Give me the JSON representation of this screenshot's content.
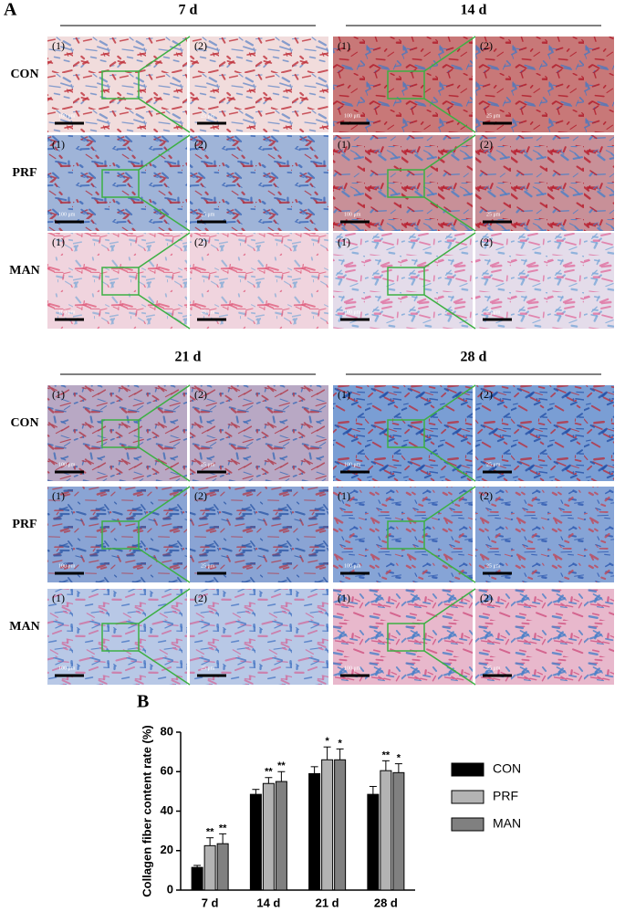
{
  "panel_a": {
    "label": "A",
    "timepoints": [
      "7 d",
      "14 d",
      "21 d",
      "28 d"
    ],
    "groups": [
      "CON",
      "PRF",
      "MAN"
    ],
    "image_labels": [
      "(1)",
      "(2)"
    ],
    "scale_bars": [
      "100 μm",
      "25 μm"
    ]
  },
  "chart_data": {
    "type": "bar",
    "panel_label": "B",
    "ylabel": "Collagen fiber content rate (%)",
    "categories": [
      "7 d",
      "14 d",
      "21 d",
      "28 d"
    ],
    "series": [
      {
        "name": "CON",
        "color": "#000000",
        "values": [
          11.5,
          48.5,
          59,
          48.5
        ],
        "errors": [
          1,
          2.5,
          3.5,
          4
        ]
      },
      {
        "name": "PRF",
        "color": "#b3b3b3",
        "values": [
          22.5,
          54,
          66,
          60.5
        ],
        "errors": [
          4,
          3,
          6.5,
          5
        ],
        "annotations": [
          "**",
          "**",
          "*",
          "**"
        ]
      },
      {
        "name": "MAN",
        "color": "#808080",
        "values": [
          23.5,
          55,
          66,
          59.5
        ],
        "errors": [
          5,
          5,
          5.5,
          4.5
        ],
        "annotations": [
          "**",
          "**",
          "*",
          "*"
        ]
      }
    ],
    "ylim": [
      0,
      80
    ],
    "yticks": [
      0,
      20,
      40,
      60,
      80
    ],
    "legend": "right"
  }
}
